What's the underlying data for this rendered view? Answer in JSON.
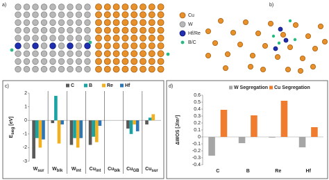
{
  "panel_labels": [
    "a)",
    "b)",
    "c)",
    "d)"
  ],
  "structure_legend": [
    "Cu",
    "W",
    "Hf/Re",
    "B/C"
  ],
  "chart_data": [
    {
      "type": "bar",
      "y_label": [
        "E",
        "seg",
        " [eV]"
      ],
      "categories": [
        [
          "W",
          "sur"
        ],
        [
          "W",
          "blk"
        ],
        [
          "W",
          "int"
        ],
        [
          "Cu",
          "int"
        ],
        [
          "Cu",
          "blk"
        ],
        [
          "Cu",
          "GB"
        ],
        [
          "Cu",
          "sur"
        ]
      ],
      "series": [
        {
          "name": "C",
          "color": "#595959",
          "values": [
            -2.8,
            -0.2,
            -1.8,
            -1.8,
            null,
            -0.6,
            -0.3
          ]
        },
        {
          "name": "B",
          "color": "#1aa3a3",
          "values": [
            -1.3,
            1.8,
            -1.3,
            -1.2,
            null,
            -1.0,
            0.2
          ]
        },
        {
          "name": "Re",
          "color": "#f2b01e",
          "values": [
            -2.0,
            -1.7,
            -2.0,
            -1.6,
            null,
            -0.3,
            0.45
          ]
        },
        {
          "name": "Hf",
          "color": "#2e75b6",
          "values": [
            -1.4,
            -0.3,
            -1.3,
            -0.4,
            null,
            -0.8,
            null
          ]
        }
      ],
      "ylim": [
        -3,
        2
      ],
      "yticks": [
        -3,
        -2,
        -1,
        0,
        1,
        2
      ]
    },
    {
      "type": "bar",
      "y_label": [
        "ΔWOS [J/m²]"
      ],
      "categories": [
        [
          "C"
        ],
        [
          "B"
        ],
        [
          "Re"
        ],
        [
          "Hf"
        ]
      ],
      "series": [
        {
          "name": "W Segregation",
          "color": "#a6a6a6",
          "values": [
            -0.27,
            -0.09,
            -0.01,
            -0.15
          ]
        },
        {
          "name": "Cu Segregation",
          "color": "#f07d2f",
          "values": [
            0.39,
            0.31,
            0.52,
            0.14
          ]
        }
      ],
      "ylim": [
        -0.4,
        0.6
      ],
      "yticks": [
        -0.4,
        -0.3,
        -0.2,
        -0.1,
        0,
        0.1,
        0.2,
        0.3,
        0.4,
        0.5,
        0.6
      ]
    }
  ]
}
